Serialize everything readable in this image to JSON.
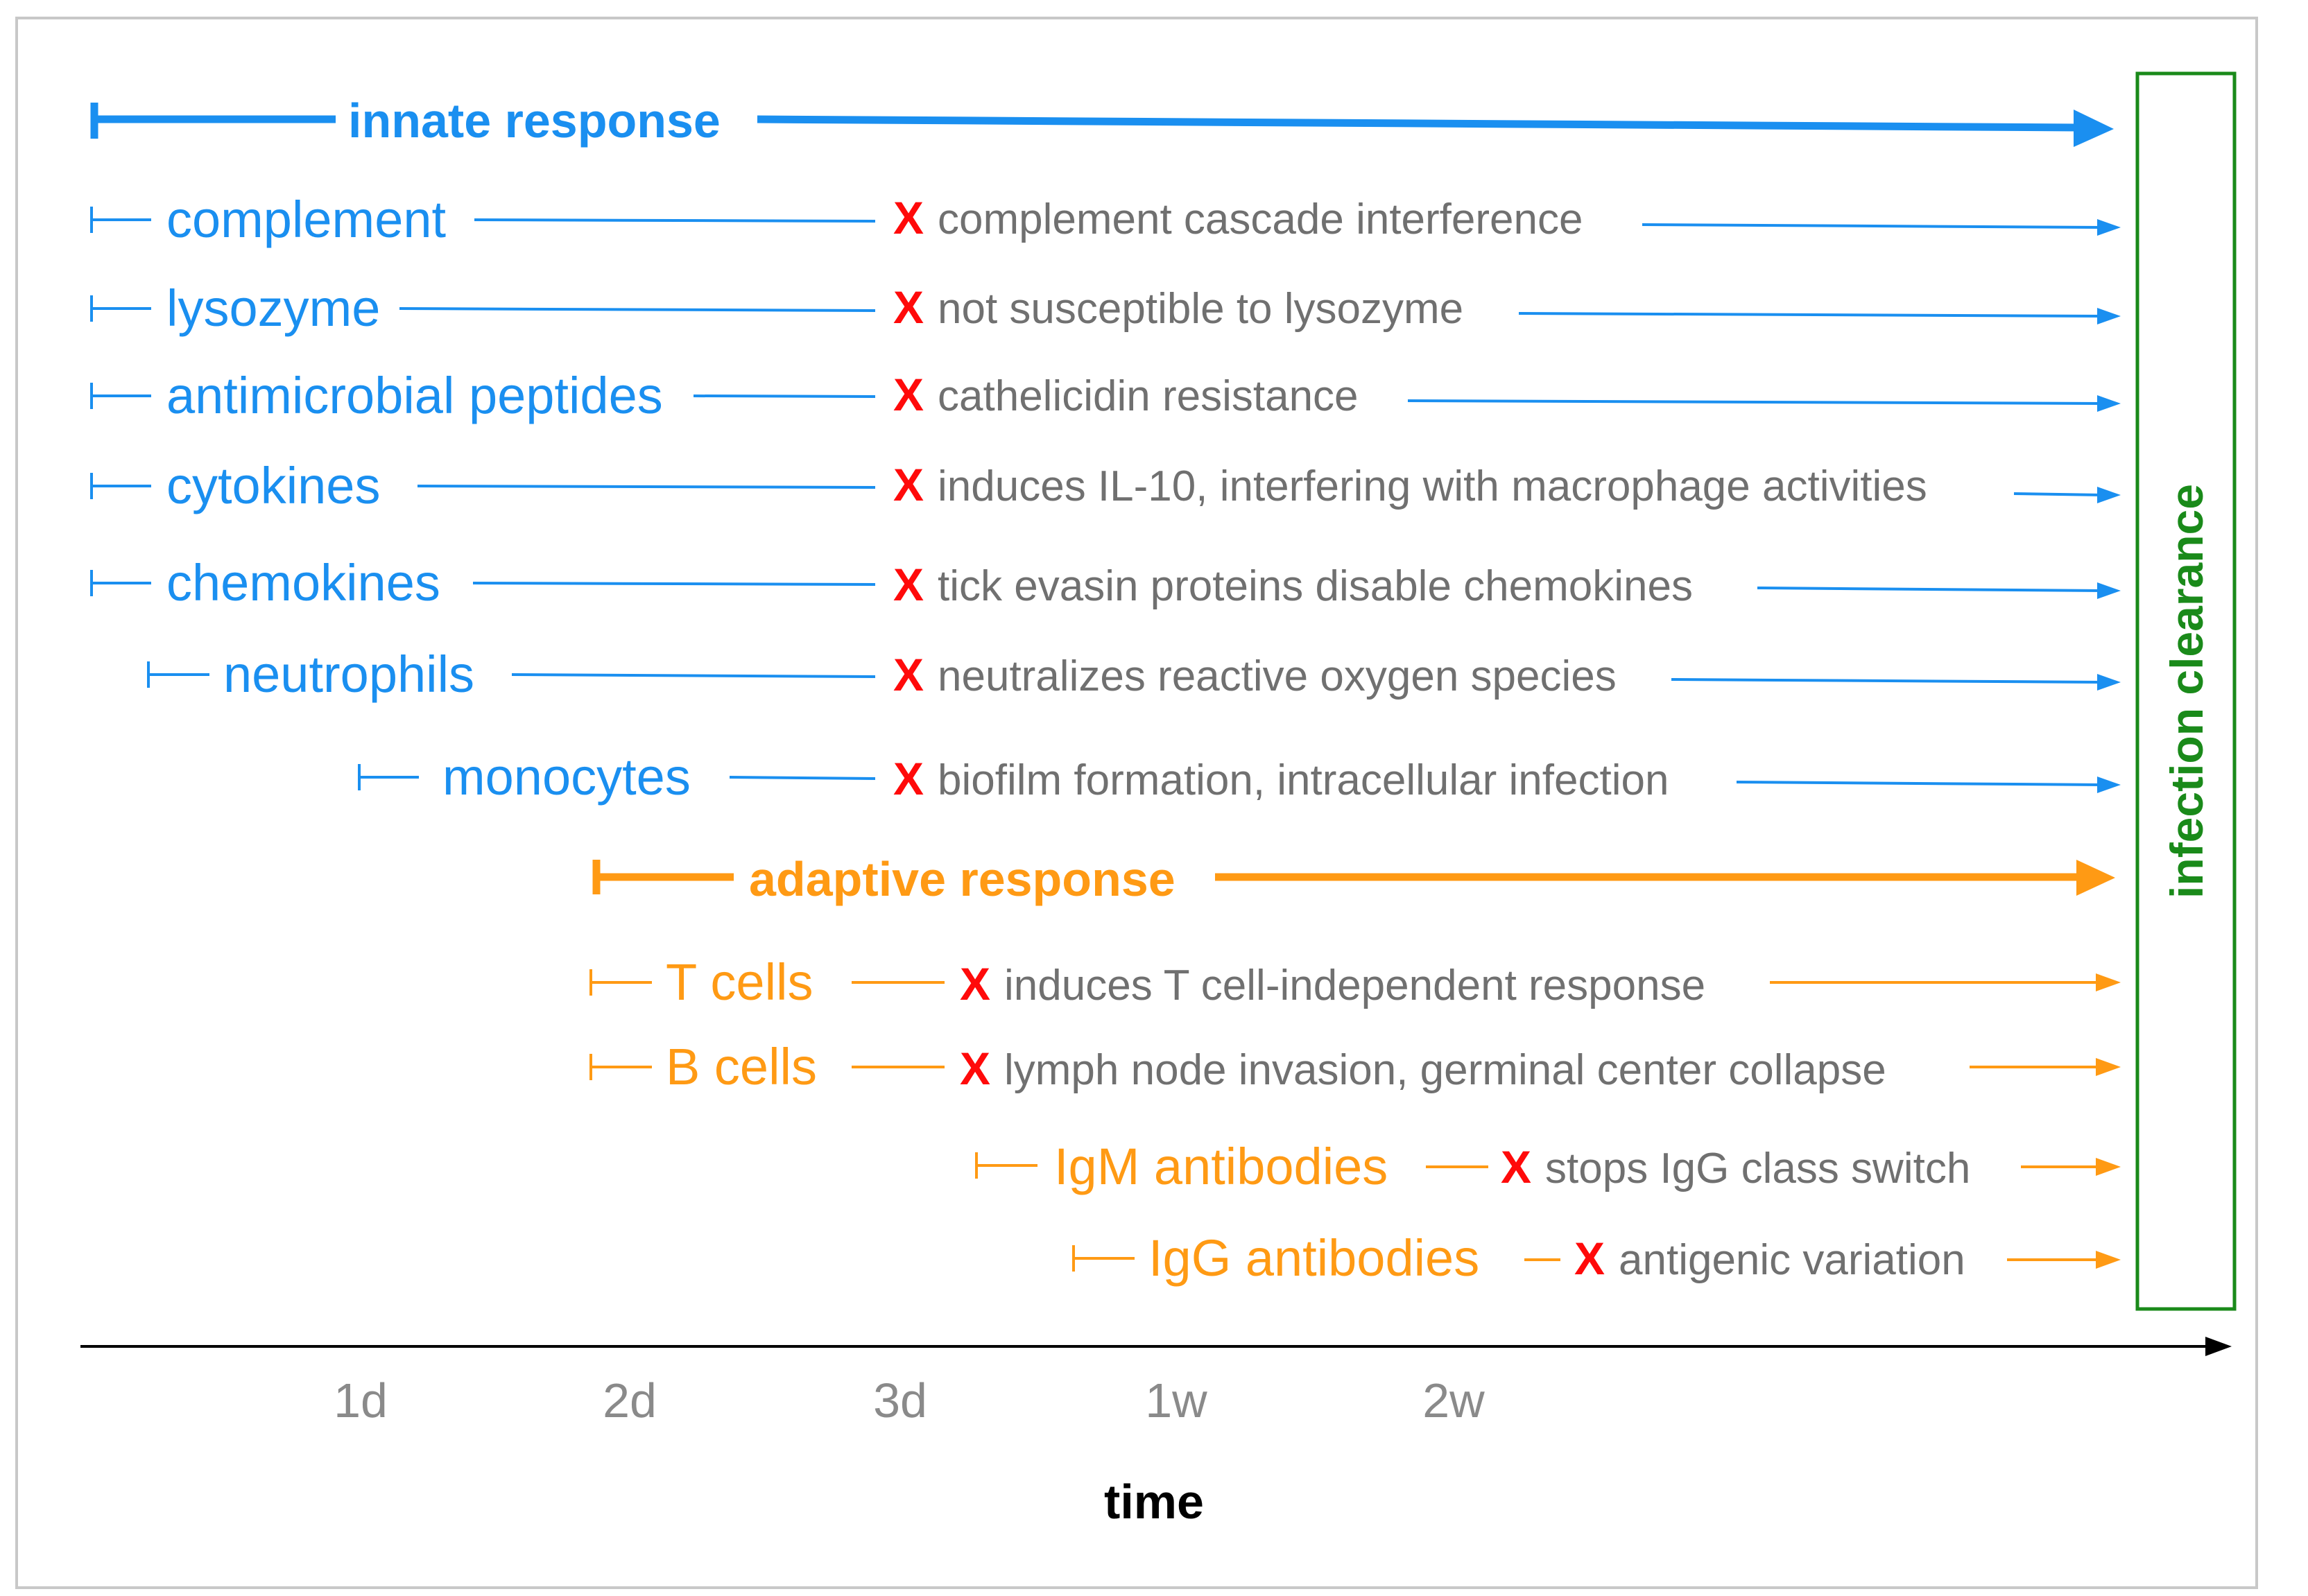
{
  "colors": {
    "innate": "#1a8ff0",
    "adaptive": "#ff9a14",
    "evasion_text": "#707070",
    "evasion_mark": "#ff0a0a",
    "clearance": "#1a8a1a",
    "axis": "#000000"
  },
  "evasion_mark": "X",
  "innate": {
    "title": "innate response",
    "items": [
      {
        "label": "complement",
        "evasion": "complement cascade interference"
      },
      {
        "label": "lysozyme",
        "evasion": "not susceptible to lysozyme"
      },
      {
        "label": "antimicrobial peptides",
        "evasion": "cathelicidin resistance"
      },
      {
        "label": "cytokines",
        "evasion": "induces IL-10, interfering with macrophage activities"
      },
      {
        "label": "chemokines",
        "evasion": "tick evasin proteins disable chemokines"
      },
      {
        "label": "neutrophils",
        "evasion": "neutralizes reactive oxygen species"
      },
      {
        "label": "monocytes",
        "evasion": "biofilm formation, intracellular infection"
      }
    ]
  },
  "adaptive": {
    "title": "adaptive response",
    "items": [
      {
        "label": "T cells",
        "evasion": "induces T cell-independent response"
      },
      {
        "label": "B cells",
        "evasion": "lymph node invasion, germinal center collapse"
      },
      {
        "label": "IgM antibodies",
        "evasion": "stops IgG class switch"
      },
      {
        "label": "IgG antibodies",
        "evasion": "antigenic variation"
      }
    ]
  },
  "outcome": {
    "label": "infection clearance"
  },
  "axis": {
    "title": "time",
    "ticks": [
      "1d",
      "2d",
      "3d",
      "1w",
      "2w"
    ]
  }
}
